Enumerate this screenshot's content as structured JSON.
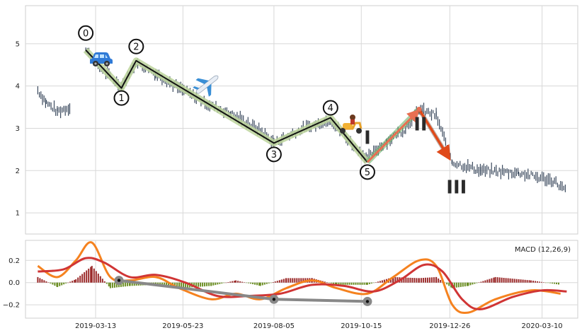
{
  "chart_data": [
    {
      "type": "candlestick",
      "panel": "price",
      "grid": true,
      "y_ticks": [
        "1",
        "2",
        "3",
        "4",
        "5"
      ],
      "ylim": [
        0.5,
        5.9
      ],
      "x_ticks": [
        "2019-03-13",
        "2019-05-23",
        "2019-08-05",
        "2019-10-15",
        "2019-12-26",
        "2020-03-10"
      ],
      "xlim": [
        "2019-01-15",
        "2020-04-08"
      ],
      "price_path": [
        {
          "x": "2019-01-25",
          "y": 3.9
        },
        {
          "x": "2019-02-01",
          "y": 3.6
        },
        {
          "x": "2019-02-10",
          "y": 3.4
        },
        {
          "x": "2019-02-20",
          "y": 3.5
        },
        {
          "x": "2019-03-05",
          "y": 4.85
        },
        {
          "x": "2019-03-15",
          "y": 4.5
        },
        {
          "x": "2019-03-25",
          "y": 4.2
        },
        {
          "x": "2019-04-03",
          "y": 4.0
        },
        {
          "x": "2019-04-15",
          "y": 4.55
        },
        {
          "x": "2019-05-01",
          "y": 4.3
        },
        {
          "x": "2019-05-20",
          "y": 3.95
        },
        {
          "x": "2019-06-10",
          "y": 3.6
        },
        {
          "x": "2019-07-01",
          "y": 3.35
        },
        {
          "x": "2019-07-25",
          "y": 2.95
        },
        {
          "x": "2019-08-05",
          "y": 2.65
        },
        {
          "x": "2019-08-25",
          "y": 2.95
        },
        {
          "x": "2019-09-10",
          "y": 3.1
        },
        {
          "x": "2019-09-20",
          "y": 3.2
        },
        {
          "x": "2019-10-05",
          "y": 2.7
        },
        {
          "x": "2019-10-20",
          "y": 2.3
        },
        {
          "x": "2019-11-05",
          "y": 2.7
        },
        {
          "x": "2019-11-20",
          "y": 3.0
        },
        {
          "x": "2019-12-01",
          "y": 3.45
        },
        {
          "x": "2019-12-15",
          "y": 3.3
        },
        {
          "x": "2019-12-28",
          "y": 2.2
        },
        {
          "x": "2020-01-20",
          "y": 2.0
        },
        {
          "x": "2020-02-20",
          "y": 1.95
        },
        {
          "x": "2020-03-20",
          "y": 1.75
        },
        {
          "x": "2020-03-30",
          "y": 1.5
        }
      ],
      "wave_points": [
        {
          "label": "0",
          "x": "2019-03-05",
          "y": 4.85
        },
        {
          "label": "1",
          "x": "2019-04-03",
          "y": 3.95
        },
        {
          "label": "2",
          "x": "2019-04-15",
          "y": 4.6
        },
        {
          "label": "3",
          "x": "2019-08-05",
          "y": 2.65
        },
        {
          "label": "4",
          "x": "2019-09-20",
          "y": 3.25
        },
        {
          "label": "5",
          "x": "2019-10-20",
          "y": 2.2
        }
      ],
      "correction_points": [
        {
          "label": "I",
          "x": "2019-10-20",
          "y": 2.2
        },
        {
          "label": "II",
          "x": "2019-12-01",
          "y": 3.45
        },
        {
          "label": "III",
          "x": "2019-12-28",
          "y": 2.2
        }
      ],
      "correction_labels": [
        "I",
        "II",
        "III"
      ],
      "icons": [
        "car-icon",
        "airplane-icon",
        "scooter-icon"
      ],
      "colors": {
        "candle": "#3b4a5e",
        "wave_line": "#111111",
        "wave_glow": "#bcd39b",
        "up_arrow": "#e86f52",
        "up_arrow_glow": "#6db36d",
        "down_arrow": "#e04a1a",
        "grid": "#d8d8d8"
      }
    },
    {
      "type": "macd",
      "panel": "indicator",
      "legend": "MACD (12,26,9)",
      "legend_position": "top-right",
      "y_ticks": [
        "0.2",
        "0.0",
        "−0.2"
      ],
      "ylim": [
        -0.32,
        0.38
      ],
      "macd_line": [
        {
          "x": "2019-01-25",
          "y": 0.15
        },
        {
          "x": "2019-02-10",
          "y": 0.05
        },
        {
          "x": "2019-02-25",
          "y": 0.2
        },
        {
          "x": "2019-03-10",
          "y": 0.36
        },
        {
          "x": "2019-03-25",
          "y": 0.05
        },
        {
          "x": "2019-04-10",
          "y": 0.02
        },
        {
          "x": "2019-05-01",
          "y": 0.05
        },
        {
          "x": "2019-05-20",
          "y": -0.05
        },
        {
          "x": "2019-06-15",
          "y": -0.15
        },
        {
          "x": "2019-07-05",
          "y": -0.1
        },
        {
          "x": "2019-07-25",
          "y": -0.15
        },
        {
          "x": "2019-08-15",
          "y": -0.05
        },
        {
          "x": "2019-09-05",
          "y": 0.02
        },
        {
          "x": "2019-09-25",
          "y": -0.05
        },
        {
          "x": "2019-10-20",
          "y": -0.1
        },
        {
          "x": "2019-11-10",
          "y": 0.05
        },
        {
          "x": "2019-12-01",
          "y": 0.2
        },
        {
          "x": "2019-12-15",
          "y": 0.15
        },
        {
          "x": "2019-12-28",
          "y": -0.2
        },
        {
          "x": "2020-01-10",
          "y": -0.27
        },
        {
          "x": "2020-02-01",
          "y": -0.15
        },
        {
          "x": "2020-03-01",
          "y": -0.07
        },
        {
          "x": "2020-03-25",
          "y": -0.1
        }
      ],
      "signal_line": [
        {
          "x": "2019-01-25",
          "y": 0.1
        },
        {
          "x": "2019-02-15",
          "y": 0.12
        },
        {
          "x": "2019-03-05",
          "y": 0.22
        },
        {
          "x": "2019-03-20",
          "y": 0.18
        },
        {
          "x": "2019-04-10",
          "y": 0.05
        },
        {
          "x": "2019-05-01",
          "y": 0.07
        },
        {
          "x": "2019-05-25",
          "y": 0.0
        },
        {
          "x": "2019-06-20",
          "y": -0.12
        },
        {
          "x": "2019-07-15",
          "y": -0.12
        },
        {
          "x": "2019-08-10",
          "y": -0.1
        },
        {
          "x": "2019-09-05",
          "y": -0.02
        },
        {
          "x": "2019-10-01",
          "y": -0.03
        },
        {
          "x": "2019-10-25",
          "y": -0.08
        },
        {
          "x": "2019-11-15",
          "y": 0.02
        },
        {
          "x": "2019-12-05",
          "y": 0.16
        },
        {
          "x": "2019-12-20",
          "y": 0.1
        },
        {
          "x": "2020-01-05",
          "y": -0.15
        },
        {
          "x": "2020-01-20",
          "y": -0.24
        },
        {
          "x": "2020-02-15",
          "y": -0.13
        },
        {
          "x": "2020-03-10",
          "y": -0.07
        },
        {
          "x": "2020-03-30",
          "y": -0.08
        }
      ],
      "histogram": [
        {
          "x": "2019-01-25",
          "y": 0.05
        },
        {
          "x": "2019-02-10",
          "y": -0.04
        },
        {
          "x": "2019-02-25",
          "y": 0.03
        },
        {
          "x": "2019-03-10",
          "y": 0.15
        },
        {
          "x": "2019-03-25",
          "y": -0.05
        },
        {
          "x": "2019-04-10",
          "y": -0.03
        },
        {
          "x": "2019-05-01",
          "y": -0.02
        },
        {
          "x": "2019-05-20",
          "y": -0.05
        },
        {
          "x": "2019-06-15",
          "y": -0.03
        },
        {
          "x": "2019-07-05",
          "y": 0.02
        },
        {
          "x": "2019-07-25",
          "y": -0.03
        },
        {
          "x": "2019-08-15",
          "y": 0.04
        },
        {
          "x": "2019-09-05",
          "y": 0.04
        },
        {
          "x": "2019-09-25",
          "y": -0.02
        },
        {
          "x": "2019-10-20",
          "y": -0.02
        },
        {
          "x": "2019-11-10",
          "y": 0.05
        },
        {
          "x": "2019-12-01",
          "y": 0.04
        },
        {
          "x": "2019-12-15",
          "y": 0.05
        },
        {
          "x": "2019-12-28",
          "y": -0.05
        },
        {
          "x": "2020-01-10",
          "y": -0.03
        },
        {
          "x": "2020-02-01",
          "y": 0.05
        },
        {
          "x": "2020-03-01",
          "y": 0.02
        },
        {
          "x": "2020-03-25",
          "y": -0.02
        }
      ],
      "divergence_points": [
        {
          "x": "2019-04-01",
          "y": 0.02
        },
        {
          "x": "2019-08-05",
          "y": -0.15
        },
        {
          "x": "2019-10-20",
          "y": -0.17
        }
      ],
      "colors": {
        "macd_line": "#f5821f",
        "signal_line": "#d03535",
        "hist_pos": "#9b2a2a",
        "hist_neg": "#6b8e23",
        "divergence": "#888888"
      }
    }
  ]
}
